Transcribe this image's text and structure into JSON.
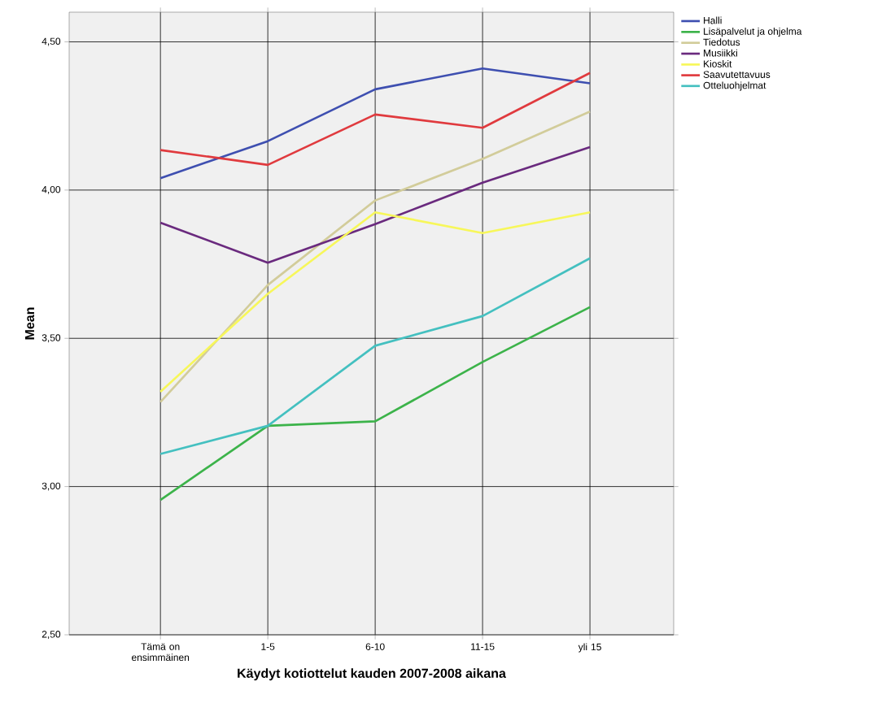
{
  "chart_data": {
    "type": "line",
    "xlabel": "Käydyt kotiottelut kauden 2007-2008 aikana",
    "ylabel": "Mean",
    "categories": [
      "Tämä on ensimmäinen",
      "1-5",
      "6-10",
      "11-15",
      "yli 15"
    ],
    "series": [
      {
        "name": "Halli",
        "color": "#3e4fb0",
        "values": [
          4.04,
          4.165,
          4.34,
          4.41,
          4.36
        ]
      },
      {
        "name": "Lisäpalvelut ja ohjelma",
        "color": "#3cb34a",
        "values": [
          2.955,
          3.205,
          3.22,
          3.42,
          3.605
        ]
      },
      {
        "name": "Tiedotus",
        "color": "#d2cc9a",
        "values": [
          3.285,
          3.68,
          3.965,
          4.105,
          4.265
        ]
      },
      {
        "name": "Musiikki",
        "color": "#6a2a7e",
        "values": [
          3.89,
          3.755,
          3.885,
          4.025,
          4.145
        ]
      },
      {
        "name": "Kioskit",
        "color": "#f7f75a",
        "values": [
          3.32,
          3.65,
          3.925,
          3.855,
          3.925
        ]
      },
      {
        "name": "Saavutettavuus",
        "color": "#e03a3e",
        "values": [
          4.135,
          4.085,
          4.255,
          4.21,
          4.395
        ]
      },
      {
        "name": "Otteluohjelmat",
        "color": "#44c0c0",
        "values": [
          3.11,
          3.205,
          3.475,
          3.575,
          3.77
        ]
      }
    ],
    "ylim": [
      2.5,
      4.6
    ],
    "yticks": [
      {
        "value": 2.5,
        "label": "2,50"
      },
      {
        "value": 3.0,
        "label": "3,00"
      },
      {
        "value": 3.5,
        "label": "3,50"
      },
      {
        "value": 4.0,
        "label": "4,00"
      },
      {
        "value": 4.5,
        "label": "4,50"
      }
    ],
    "grid": true,
    "legend": "top right",
    "marker": "none",
    "line_style": "solid"
  }
}
